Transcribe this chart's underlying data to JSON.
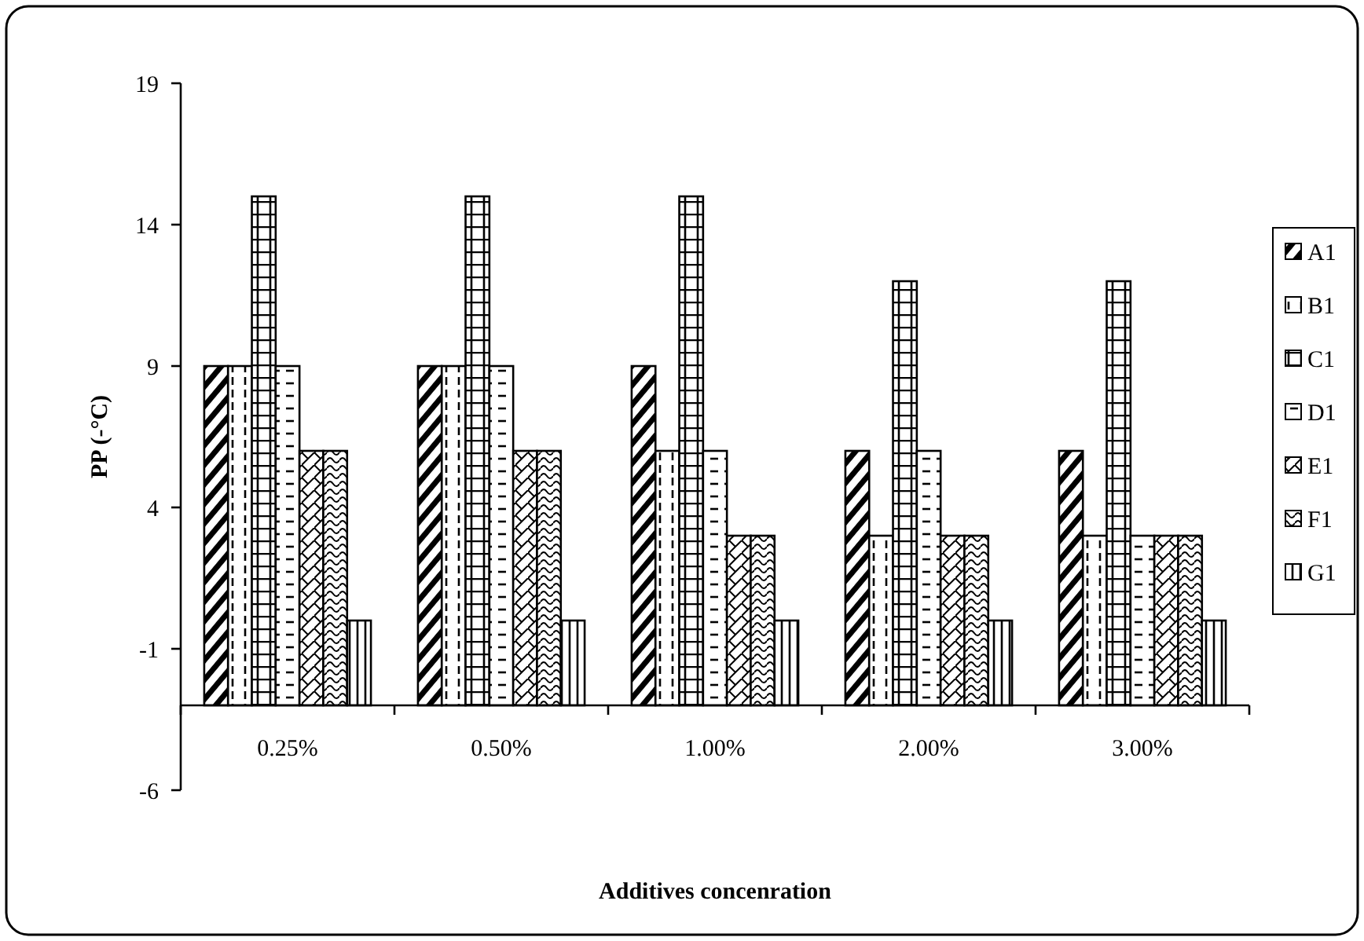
{
  "chart_data": {
    "type": "bar",
    "xlabel": "Additives concenration",
    "ylabel": "PP (-°C)",
    "categories": [
      "0.25%",
      "0.50%",
      "1.00%",
      "2.00%",
      "3.00%"
    ],
    "series": [
      {
        "name": "A1",
        "base": [
          -3,
          -3,
          -3,
          -3,
          -3
        ],
        "values": [
          12,
          12,
          12,
          9,
          9
        ]
      },
      {
        "name": "B1",
        "base": [
          -3,
          -3,
          -3,
          -3,
          -3
        ],
        "values": [
          12,
          12,
          9,
          6,
          6
        ]
      },
      {
        "name": "C1",
        "base": [
          -3,
          -3,
          -3,
          -3,
          -3
        ],
        "values": [
          18,
          18,
          18,
          15,
          15
        ]
      },
      {
        "name": "D1",
        "base": [
          -3,
          -3,
          -3,
          -3,
          -3
        ],
        "values": [
          12,
          12,
          9,
          9,
          6
        ]
      },
      {
        "name": "E1",
        "base": [
          -3,
          -3,
          -3,
          -3,
          -3
        ],
        "values": [
          9,
          9,
          6,
          6,
          6
        ]
      },
      {
        "name": "F1",
        "base": [
          -3,
          -3,
          -3,
          -3,
          -3
        ],
        "values": [
          9,
          9,
          6,
          6,
          6
        ]
      },
      {
        "name": "G1",
        "base": [
          -3,
          -3,
          -3,
          -3,
          -3
        ],
        "values": [
          3,
          3,
          3,
          3,
          3
        ]
      }
    ],
    "ylim": [
      -6,
      19
    ],
    "yticks": [
      -6,
      -1,
      4,
      9,
      14,
      19
    ],
    "legend": "right"
  }
}
